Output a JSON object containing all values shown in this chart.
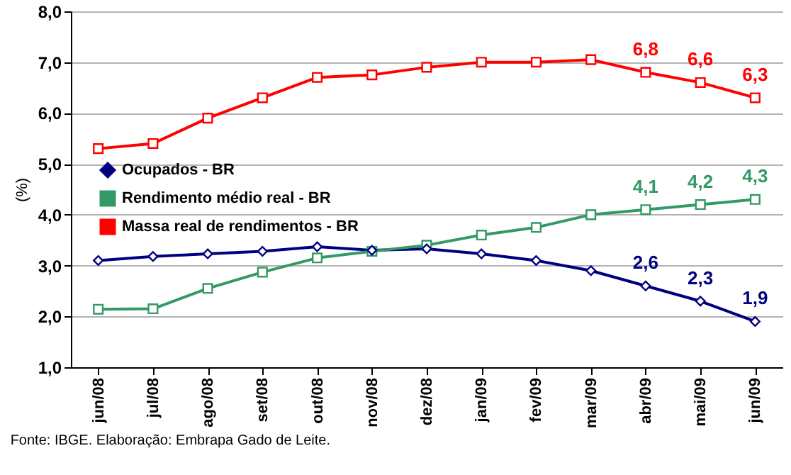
{
  "chart_data": {
    "type": "line",
    "ylabel": "(%)",
    "categories": [
      "jun/08",
      "jul/08",
      "ago/08",
      "set/08",
      "out/08",
      "nov/08",
      "dez/08",
      "jan/09",
      "fev/09",
      "mar/09",
      "abr/09",
      "mai/09",
      "jun/09"
    ],
    "series": [
      {
        "name": "Ocupados - BR",
        "color": "#000080",
        "marker": "diamond",
        "values": [
          3.1,
          3.18,
          3.23,
          3.28,
          3.37,
          3.3,
          3.33,
          3.23,
          3.1,
          2.9,
          2.6,
          2.3,
          1.9
        ],
        "value_labels": [
          null,
          null,
          null,
          null,
          null,
          null,
          null,
          null,
          null,
          null,
          "2,6",
          "2,3",
          "1,9"
        ]
      },
      {
        "name": "Rendimento médio real - BR",
        "color": "#339966",
        "marker": "square",
        "values": [
          2.14,
          2.15,
          2.55,
          2.87,
          3.15,
          3.28,
          3.4,
          3.6,
          3.75,
          4.0,
          4.1,
          4.2,
          4.3
        ],
        "value_labels": [
          null,
          null,
          null,
          null,
          null,
          null,
          null,
          null,
          null,
          null,
          "4,1",
          "4,2",
          "4,3"
        ]
      },
      {
        "name": "Massa real de rendimentos - BR",
        "color": "#ff0000",
        "marker": "square",
        "values": [
          5.3,
          5.4,
          5.9,
          6.3,
          6.7,
          6.75,
          6.9,
          7.0,
          7.0,
          7.05,
          6.8,
          6.6,
          6.3
        ],
        "value_labels": [
          null,
          null,
          null,
          null,
          null,
          null,
          null,
          null,
          null,
          null,
          "6,8",
          "6,6",
          "6,3"
        ]
      }
    ],
    "ylim": [
      1,
      8
    ],
    "yticks": [
      {
        "value": 1,
        "label": "1,0"
      },
      {
        "value": 2,
        "label": "2,0"
      },
      {
        "value": 3,
        "label": "3,0"
      },
      {
        "value": 4,
        "label": "4,0"
      },
      {
        "value": 5,
        "label": "5,0"
      },
      {
        "value": 6,
        "label": "6,0"
      },
      {
        "value": 7,
        "label": "7,0"
      },
      {
        "value": 8,
        "label": "8,0"
      }
    ],
    "grid": "y",
    "legend": "left",
    "annotations": [
      "Fonte: IBGE. Elaboração: Embrapa Gado de Leite."
    ]
  }
}
